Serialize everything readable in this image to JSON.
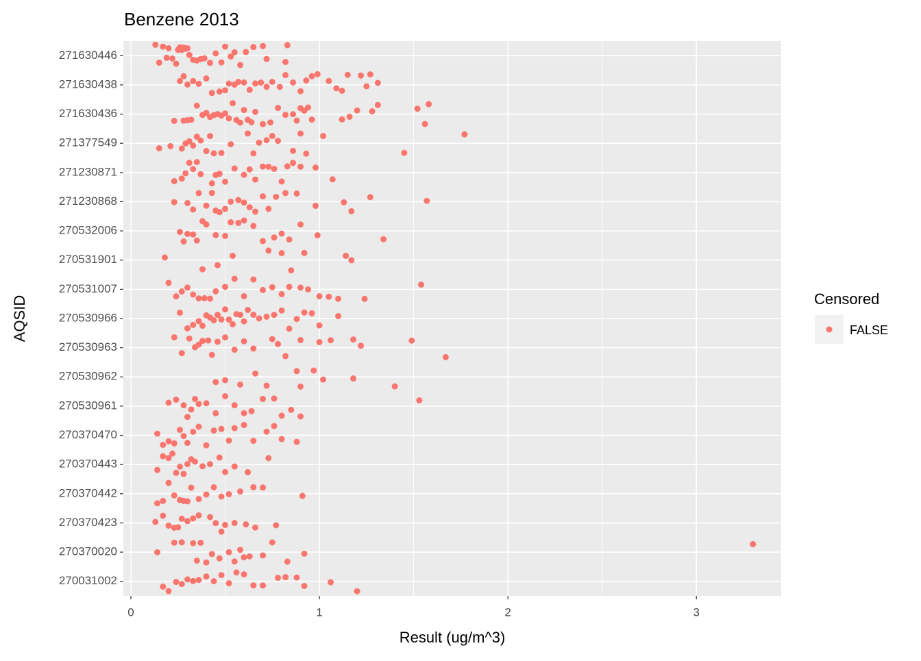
{
  "chart_data": {
    "type": "strip",
    "title": "Benzene 2013",
    "x_label": "Result (ug/m^3)",
    "y_label": "AQSID",
    "legend_title": "Censored",
    "categories": [
      "271630446",
      "271630438",
      "271630436",
      "271377549",
      "271230871",
      "271230868",
      "270532006",
      "270531901",
      "270531007",
      "270530966",
      "270530963",
      "270530962",
      "270530961",
      "270370470",
      "270370443",
      "270370442",
      "270370423",
      "270370020",
      "270031002"
    ],
    "series": [
      {
        "name": "FALSE",
        "color": "#F8766D",
        "values": [
          [
            0.13,
            0.15,
            0.17,
            0.19,
            0.2,
            0.22,
            0.24,
            0.25,
            0.26,
            0.27,
            0.28,
            0.29,
            0.3,
            0.31,
            0.33,
            0.35,
            0.37,
            0.39,
            0.42,
            0.45,
            0.48,
            0.5,
            0.53,
            0.55,
            0.58,
            0.61,
            0.65,
            0.7,
            0.72,
            0.82,
            0.83
          ],
          [
            0.26,
            0.28,
            0.3,
            0.33,
            0.36,
            0.4,
            0.43,
            0.47,
            0.5,
            0.52,
            0.55,
            0.57,
            0.6,
            0.63,
            0.66,
            0.69,
            0.72,
            0.75,
            0.79,
            0.82,
            0.86,
            0.9,
            0.93,
            0.96,
            0.99,
            1.05,
            1.09,
            1.12,
            1.15,
            1.22,
            1.25,
            1.27,
            1.31
          ],
          [
            0.23,
            0.28,
            0.3,
            0.32,
            0.35,
            0.38,
            0.4,
            0.42,
            0.44,
            0.46,
            0.48,
            0.5,
            0.52,
            0.54,
            0.56,
            0.58,
            0.6,
            0.62,
            0.64,
            0.66,
            0.7,
            0.74,
            0.78,
            0.82,
            0.86,
            0.88,
            0.9,
            0.92,
            0.94,
            0.96,
            1.12,
            1.16,
            1.2,
            1.28,
            1.31,
            1.52,
            1.56,
            1.58
          ],
          [
            0.15,
            0.21,
            0.27,
            0.29,
            0.31,
            0.33,
            0.35,
            0.37,
            0.4,
            0.42,
            0.44,
            0.48,
            0.53,
            0.62,
            0.65,
            0.68,
            0.72,
            0.75,
            0.78,
            0.86,
            0.9,
            0.93,
            1.02,
            1.45,
            1.77
          ],
          [
            0.23,
            0.27,
            0.29,
            0.31,
            0.33,
            0.35,
            0.37,
            0.43,
            0.45,
            0.47,
            0.5,
            0.55,
            0.6,
            0.63,
            0.66,
            0.7,
            0.73,
            0.76,
            0.8,
            0.83,
            0.86,
            0.9,
            0.98,
            1.07
          ],
          [
            0.23,
            0.3,
            0.33,
            0.36,
            0.4,
            0.43,
            0.45,
            0.47,
            0.5,
            0.53,
            0.57,
            0.6,
            0.63,
            0.66,
            0.7,
            0.73,
            0.77,
            0.82,
            0.88,
            0.98,
            1.13,
            1.17,
            1.27,
            1.57
          ],
          [
            0.26,
            0.28,
            0.3,
            0.33,
            0.35,
            0.38,
            0.4,
            0.45,
            0.5,
            0.53,
            0.57,
            0.6,
            0.65,
            0.7,
            0.76,
            0.8,
            0.84,
            0.9,
            0.99,
            1.34
          ],
          [
            0.18,
            0.38,
            0.46,
            0.54,
            0.73,
            0.8,
            0.85,
            0.92,
            1.14,
            1.17
          ],
          [
            0.2,
            0.24,
            0.27,
            0.3,
            0.33,
            0.36,
            0.39,
            0.42,
            0.45,
            0.5,
            0.55,
            0.6,
            0.65,
            0.7,
            0.75,
            0.8,
            0.84,
            0.9,
            0.94,
            1.0,
            1.05,
            1.1,
            1.24,
            1.54
          ],
          [
            0.26,
            0.3,
            0.33,
            0.36,
            0.38,
            0.4,
            0.42,
            0.44,
            0.46,
            0.48,
            0.5,
            0.52,
            0.54,
            0.56,
            0.58,
            0.6,
            0.62,
            0.65,
            0.68,
            0.72,
            0.76,
            0.8,
            0.84,
            0.88,
            0.92,
            0.96,
            1.0,
            1.1
          ],
          [
            0.23,
            0.27,
            0.31,
            0.34,
            0.36,
            0.38,
            0.41,
            0.43,
            0.46,
            0.5,
            0.55,
            0.6,
            0.65,
            0.75,
            0.78,
            0.82,
            0.9,
            1.0,
            1.06,
            1.18,
            1.22,
            1.49,
            1.67
          ],
          [
            0.45,
            0.5,
            0.58,
            0.66,
            0.72,
            0.88,
            0.9,
            0.97,
            1.02,
            1.18,
            1.4
          ],
          [
            0.2,
            0.24,
            0.28,
            0.3,
            0.32,
            0.34,
            0.36,
            0.4,
            0.45,
            0.5,
            0.55,
            0.6,
            0.64,
            0.7,
            0.76,
            0.8,
            0.85,
            0.9,
            1.53
          ],
          [
            0.14,
            0.17,
            0.2,
            0.23,
            0.26,
            0.28,
            0.3,
            0.33,
            0.36,
            0.4,
            0.44,
            0.48,
            0.52,
            0.55,
            0.6,
            0.65,
            0.72,
            0.76,
            0.8,
            0.88
          ],
          [
            0.14,
            0.17,
            0.2,
            0.22,
            0.24,
            0.26,
            0.28,
            0.3,
            0.32,
            0.34,
            0.38,
            0.42,
            0.47,
            0.5,
            0.55,
            0.62,
            0.73
          ],
          [
            0.14,
            0.17,
            0.2,
            0.23,
            0.26,
            0.28,
            0.3,
            0.32,
            0.36,
            0.4,
            0.44,
            0.48,
            0.52,
            0.58,
            0.65,
            0.7,
            0.91
          ],
          [
            0.13,
            0.17,
            0.2,
            0.23,
            0.25,
            0.27,
            0.3,
            0.33,
            0.36,
            0.42,
            0.45,
            0.48,
            0.5,
            0.55,
            0.61,
            0.66,
            0.77
          ],
          [
            0.14,
            0.23,
            0.27,
            0.33,
            0.35,
            0.37,
            0.4,
            0.43,
            0.47,
            0.52,
            0.55,
            0.58,
            0.6,
            0.63,
            0.7,
            0.75,
            0.83,
            0.92,
            3.3
          ],
          [
            0.17,
            0.2,
            0.24,
            0.27,
            0.3,
            0.33,
            0.36,
            0.4,
            0.44,
            0.48,
            0.52,
            0.56,
            0.6,
            0.65,
            0.7,
            0.78,
            0.82,
            0.88,
            0.92,
            1.06,
            1.2
          ]
        ]
      }
    ],
    "xlim": [
      -0.04,
      3.45
    ],
    "xticks": [
      0,
      1,
      2,
      3
    ],
    "x_minor_grid": [
      0.5,
      1.5,
      2.5
    ],
    "grid": true
  }
}
